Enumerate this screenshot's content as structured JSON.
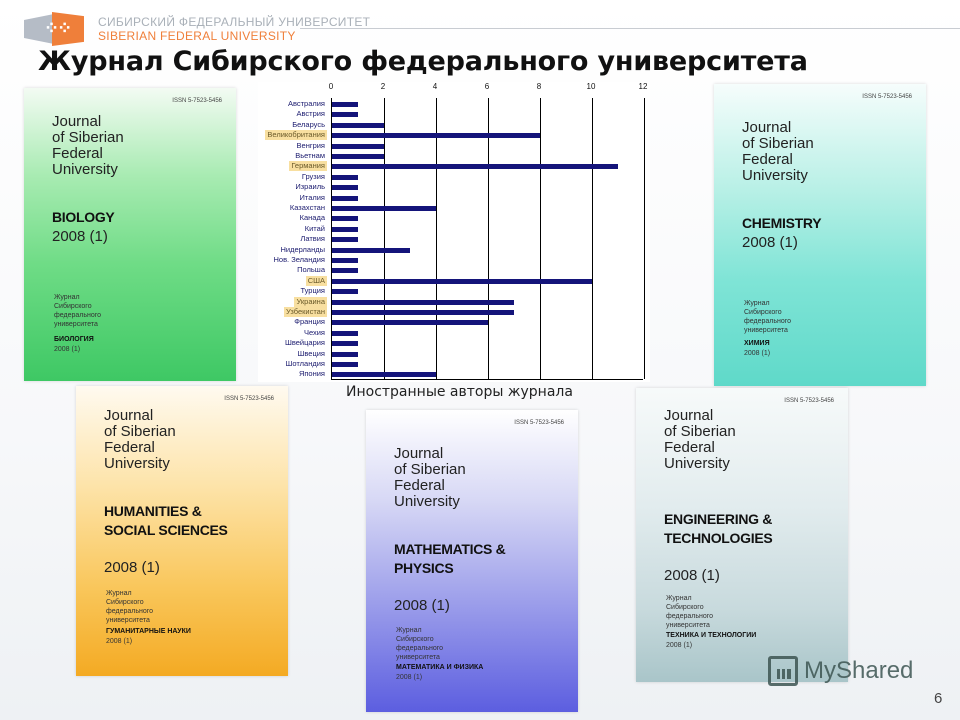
{
  "header": {
    "logo_ru": "СИБИРСКИЙ ФЕДЕРАЛЬНЫЙ УНИВЕРСИТЕТ",
    "logo_en": "SIBERIAN FEDERAL UNIVERSITY",
    "brand_colors": {
      "orange": "#ef7f3a",
      "grey": "#b5bcc6"
    }
  },
  "title": "Журнал Сибирского федерального университета",
  "covers": [
    {
      "id": "bio",
      "issn": "ISSN 5-7523-5456",
      "journal": [
        "Journal",
        "of Siberian",
        "Federal",
        "University"
      ],
      "subject": [
        "BIOLOGY"
      ],
      "year": "2008 (1)",
      "ru_name": [
        "Журнал",
        "Сибирского",
        "федерального",
        "университета"
      ],
      "ru_subject": "БИОЛОГИЯ",
      "ru_year": "2008 (1)"
    },
    {
      "id": "chem",
      "issn": "ISSN 5-7523-5456",
      "journal": [
        "Journal",
        "of Siberian",
        "Federal",
        "University"
      ],
      "subject": [
        "CHEMISTRY"
      ],
      "year": "2008 (1)",
      "ru_name": [
        "Журнал",
        "Сибирского",
        "федерального",
        "университета"
      ],
      "ru_subject": "ХИМИЯ",
      "ru_year": "2008 (1)"
    },
    {
      "id": "hum",
      "issn": "ISSN 5-7523-5456",
      "journal": [
        "Journal",
        "of Siberian",
        "Federal",
        "University"
      ],
      "subject": [
        "HUMANITIES &",
        "SOCIAL SCIENCES"
      ],
      "year": "2008 (1)",
      "ru_name": [
        "Журнал",
        "Сибирского",
        "федерального",
        "университета"
      ],
      "ru_subject": "ГУМАНИТАРНЫЕ НАУКИ",
      "ru_year": "2008 (1)"
    },
    {
      "id": "math",
      "issn": "ISSN 5-7523-5456",
      "journal": [
        "Journal",
        "of Siberian",
        "Federal",
        "University"
      ],
      "subject": [
        "MATHEMATICS &",
        "PHYSICS"
      ],
      "year": "2008 (1)",
      "ru_name": [
        "Журнал",
        "Сибирского",
        "федерального",
        "университета"
      ],
      "ru_subject": "МАТЕМАТИКА И ФИЗИКА",
      "ru_year": "2008 (1)"
    },
    {
      "id": "eng",
      "issn": "ISSN 5-7523-5456",
      "journal": [
        "Journal",
        "of Siberian",
        "Federal",
        "University"
      ],
      "subject": [
        "ENGINEERING &",
        "TECHNOLOGIES"
      ],
      "year": "2008 (1)",
      "ru_name": [
        "Журнал",
        "Сибирского",
        "федерального",
        "университета"
      ],
      "ru_subject": "ТЕХНИКА И ТЕХНОЛОГИИ",
      "ru_year": "2008 (1)"
    }
  ],
  "chart_data": {
    "type": "bar",
    "orientation": "horizontal",
    "title": "Иностранные авторы журнала",
    "xlabel": "",
    "ylabel": "",
    "xlim": [
      0,
      12
    ],
    "xticks": [
      0,
      2,
      4,
      6,
      8,
      10,
      12
    ],
    "grid": true,
    "legend": null,
    "bar_color": "#14147a",
    "highlight_color": "#f8dfa0",
    "categories": [
      "Австралия",
      "Австрия",
      "Беларусь",
      "Великобритания",
      "Венгрия",
      "Вьетнам",
      "Германия",
      "Грузия",
      "Израиль",
      "Италия",
      "Казахстан",
      "Канада",
      "Китай",
      "Латвия",
      "Нидерланды",
      "Нов. Зеландия",
      "Польша",
      "США",
      "Турция",
      "Украина",
      "Узбекистан",
      "Франция",
      "Чехия",
      "Швейцария",
      "Швеция",
      "Шотландия",
      "Япония"
    ],
    "values": [
      1,
      1,
      2,
      8,
      2,
      2,
      11,
      1,
      1,
      1,
      4,
      1,
      1,
      1,
      3,
      1,
      1,
      10,
      1,
      7,
      7,
      6,
      1,
      1,
      1,
      1,
      4
    ],
    "highlighted": [
      "Великобритания",
      "Германия",
      "США",
      "Украина",
      "Узбекистан"
    ]
  },
  "footer": {
    "watermark": "MyShared",
    "page_number": "6"
  }
}
